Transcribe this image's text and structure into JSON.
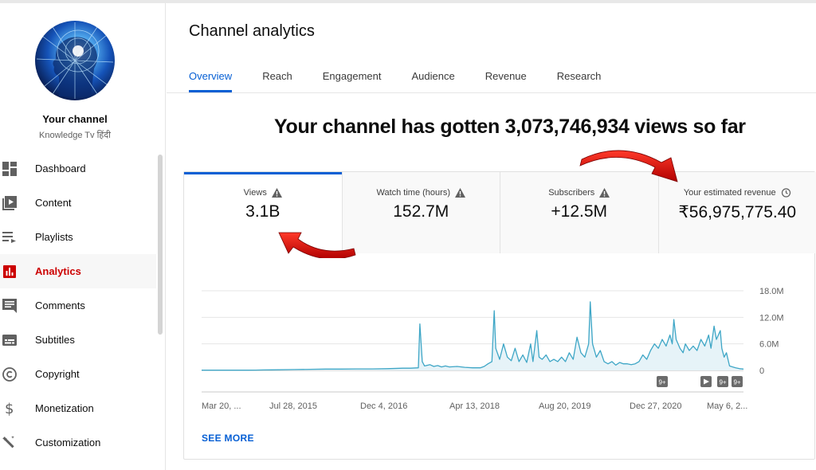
{
  "sidebar": {
    "channel_title": "Your channel",
    "channel_name": "Knowledge Tv हिंदी",
    "items": [
      {
        "label": "Dashboard",
        "icon": "dashboard-icon"
      },
      {
        "label": "Content",
        "icon": "content-icon"
      },
      {
        "label": "Playlists",
        "icon": "playlists-icon"
      },
      {
        "label": "Analytics",
        "icon": "analytics-icon",
        "active": true
      },
      {
        "label": "Comments",
        "icon": "comments-icon"
      },
      {
        "label": "Subtitles",
        "icon": "subtitles-icon"
      },
      {
        "label": "Copyright",
        "icon": "copyright-icon"
      },
      {
        "label": "Monetization",
        "icon": "monetization-icon"
      },
      {
        "label": "Customization",
        "icon": "customization-icon"
      }
    ]
  },
  "header": {
    "title": "Channel analytics",
    "tabs": [
      {
        "label": "Overview",
        "active": true
      },
      {
        "label": "Reach"
      },
      {
        "label": "Engagement"
      },
      {
        "label": "Audience"
      },
      {
        "label": "Revenue"
      },
      {
        "label": "Research"
      }
    ]
  },
  "headline": "Your channel has gotten 3,073,746,934 views so far",
  "metrics": [
    {
      "label": "Views",
      "value": "3.1B",
      "icon": "warning-icon",
      "active": true
    },
    {
      "label": "Watch time (hours)",
      "value": "152.7M",
      "icon": "warning-icon"
    },
    {
      "label": "Subscribers",
      "value": "+12.5M",
      "icon": "warning-icon"
    },
    {
      "label": "Your estimated revenue",
      "value": "₹56,975,775.40",
      "icon": "clock-icon"
    }
  ],
  "chart_data": {
    "type": "line",
    "x_tick_labels": [
      "Mar 20, ...",
      "Jul 28, 2015",
      "Dec 4, 2016",
      "Apr 13, 2018",
      "Aug 20, 2019",
      "Dec 27, 2020",
      "May 6, 2..."
    ],
    "y_tick_labels": [
      "18.0M",
      "12.0M",
      "6.0M",
      "0"
    ],
    "ylim": [
      0,
      18000000
    ],
    "grid": true,
    "line_color": "#3ea6c6",
    "fill_color": "#e6f3f8",
    "markers": [
      {
        "label": "9+",
        "type": "badge"
      },
      {
        "label": "",
        "type": "play"
      },
      {
        "label": "9+",
        "type": "badge"
      },
      {
        "label": "9+",
        "type": "badge"
      }
    ],
    "series": [
      {
        "points": [
          [
            0.0,
            0.05
          ],
          [
            0.1,
            0.05
          ],
          [
            0.2,
            0.05
          ],
          [
            0.3,
            0.05
          ],
          [
            0.4,
            0.05
          ],
          [
            0.5,
            0.06
          ],
          [
            0.6,
            0.06
          ],
          [
            0.7,
            0.08
          ],
          [
            0.8,
            0.1
          ],
          [
            0.9,
            0.12
          ],
          [
            1.0,
            0.15
          ],
          [
            1.2,
            0.2
          ],
          [
            1.4,
            0.25
          ],
          [
            1.6,
            0.3
          ],
          [
            1.8,
            0.3
          ],
          [
            2.0,
            0.35
          ],
          [
            2.2,
            0.35
          ],
          [
            2.4,
            0.4
          ],
          [
            2.6,
            0.5
          ],
          [
            2.7,
            0.5
          ],
          [
            2.8,
            0.6
          ],
          [
            2.82,
            10.5
          ],
          [
            2.85,
            2.0
          ],
          [
            2.88,
            1.0
          ],
          [
            2.95,
            1.3
          ],
          [
            3.0,
            0.9
          ],
          [
            3.05,
            1.1
          ],
          [
            3.1,
            0.8
          ],
          [
            3.15,
            1.0
          ],
          [
            3.2,
            0.8
          ],
          [
            3.3,
            0.9
          ],
          [
            3.4,
            0.7
          ],
          [
            3.5,
            0.6
          ],
          [
            3.6,
            0.6
          ],
          [
            3.65,
            0.9
          ],
          [
            3.7,
            1.5
          ],
          [
            3.75,
            2.0
          ],
          [
            3.78,
            13.5
          ],
          [
            3.8,
            5.0
          ],
          [
            3.85,
            2.5
          ],
          [
            3.9,
            6.0
          ],
          [
            3.95,
            3.0
          ],
          [
            4.0,
            2.2
          ],
          [
            4.05,
            5.0
          ],
          [
            4.1,
            2.0
          ],
          [
            4.15,
            3.5
          ],
          [
            4.2,
            1.8
          ],
          [
            4.25,
            6.0
          ],
          [
            4.28,
            2.0
          ],
          [
            4.33,
            9.0
          ],
          [
            4.36,
            3.0
          ],
          [
            4.4,
            2.5
          ],
          [
            4.45,
            3.5
          ],
          [
            4.5,
            2.0
          ],
          [
            4.55,
            2.5
          ],
          [
            4.6,
            2.0
          ],
          [
            4.65,
            3.0
          ],
          [
            4.7,
            2.0
          ],
          [
            4.75,
            4.0
          ],
          [
            4.8,
            2.5
          ],
          [
            4.85,
            7.5
          ],
          [
            4.9,
            4.0
          ],
          [
            4.95,
            3.0
          ],
          [
            5.0,
            6.0
          ],
          [
            5.02,
            15.5
          ],
          [
            5.05,
            6.0
          ],
          [
            5.1,
            3.0
          ],
          [
            5.15,
            4.5
          ],
          [
            5.2,
            2.0
          ],
          [
            5.25,
            1.5
          ],
          [
            5.3,
            2.0
          ],
          [
            5.35,
            1.2
          ],
          [
            5.4,
            1.8
          ],
          [
            5.45,
            1.5
          ],
          [
            5.5,
            1.5
          ],
          [
            5.55,
            1.3
          ],
          [
            5.6,
            1.5
          ],
          [
            5.65,
            2.0
          ],
          [
            5.7,
            3.5
          ],
          [
            5.75,
            2.5
          ],
          [
            5.8,
            4.5
          ],
          [
            5.85,
            6.0
          ],
          [
            5.9,
            5.0
          ],
          [
            5.95,
            7.0
          ],
          [
            6.0,
            5.5
          ],
          [
            6.05,
            8.0
          ],
          [
            6.08,
            6.0
          ],
          [
            6.1,
            11.5
          ],
          [
            6.13,
            7.0
          ],
          [
            6.18,
            5.0
          ],
          [
            6.22,
            4.0
          ],
          [
            6.25,
            6.0
          ],
          [
            6.3,
            4.5
          ],
          [
            6.35,
            5.5
          ],
          [
            6.4,
            4.5
          ],
          [
            6.45,
            7.0
          ],
          [
            6.5,
            5.5
          ],
          [
            6.55,
            8.0
          ],
          [
            6.58,
            5.0
          ],
          [
            6.62,
            10.0
          ],
          [
            6.65,
            7.0
          ],
          [
            6.7,
            9.0
          ],
          [
            6.72,
            5.0
          ],
          [
            6.75,
            3.0
          ],
          [
            6.78,
            4.0
          ],
          [
            6.82,
            1.0
          ],
          [
            6.86,
            0.8
          ],
          [
            6.9,
            0.6
          ],
          [
            6.95,
            0.4
          ],
          [
            7.0,
            0.3
          ]
        ]
      }
    ]
  },
  "see_more": "SEE MORE"
}
